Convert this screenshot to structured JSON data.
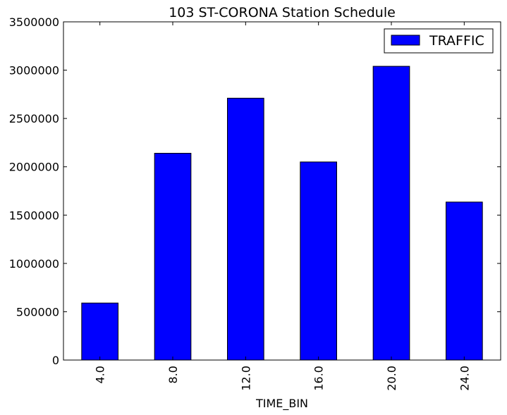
{
  "chart_data": {
    "type": "bar",
    "title": "103 ST-CORONA Station Schedule",
    "xlabel": "TIME_BIN",
    "ylabel": "",
    "categories": [
      "4.0",
      "8.0",
      "12.0",
      "16.0",
      "20.0",
      "24.0"
    ],
    "series": [
      {
        "name": "TRAFFIC",
        "values": [
          590000,
          2140000,
          2710000,
          2050000,
          3040000,
          1635000
        ],
        "color": "#0000ff"
      }
    ],
    "ylim": [
      0,
      3500000
    ],
    "y_ticks": [
      0,
      500000,
      1000000,
      1500000,
      2000000,
      2500000,
      3000000,
      3500000
    ],
    "y_tick_labels": [
      "0",
      "500000",
      "1000000",
      "1500000",
      "2000000",
      "2500000",
      "3000000",
      "3500000"
    ],
    "x_tick_rotation": "vertical",
    "legend_position": "top-right",
    "grid": false
  }
}
